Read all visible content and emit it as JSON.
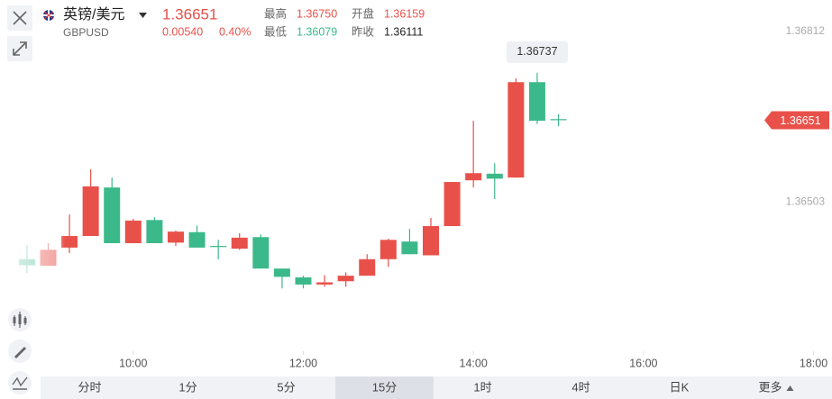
{
  "header": {
    "name": "英镑/美元",
    "symbol": "GBPUSD",
    "last": "1.36651",
    "change": "0.00540",
    "change_pct": "0.40%",
    "high_label": "最高",
    "high": "1.36750",
    "low_label": "最低",
    "low": "1.36079",
    "open_label": "开盘",
    "open": "1.36159",
    "prev_label": "昨收",
    "prev": "1.36111"
  },
  "tabs": [
    "分时",
    "1分",
    "5分",
    "15分",
    "1时",
    "4时",
    "日K",
    "更多"
  ],
  "selected_tab": "15分",
  "chart_data": {
    "type": "candlestick",
    "x": [
      525,
      540,
      555,
      570,
      585,
      600,
      615,
      630,
      645,
      660,
      675,
      690,
      705,
      720,
      735,
      750,
      765,
      780,
      795,
      810,
      825,
      840,
      855,
      870,
      885,
      900
    ],
    "open": [
      1.36399,
      1.36387,
      1.3642,
      1.36441,
      1.36529,
      1.36428,
      1.3647,
      1.36429,
      1.36448,
      1.36423,
      1.36418,
      1.36439,
      1.36382,
      1.36366,
      1.36353,
      1.36359,
      1.36369,
      1.36399,
      1.36431,
      1.36406,
      1.36459,
      1.36542,
      1.36554,
      1.36547,
      1.3672,
      1.36653
    ],
    "high": [
      1.36425,
      1.36428,
      1.3648,
      1.36562,
      1.36547,
      1.36472,
      1.36475,
      1.36451,
      1.3646,
      1.36434,
      1.36446,
      1.36444,
      1.36382,
      1.36369,
      1.3637,
      1.36375,
      1.36408,
      1.36436,
      1.36454,
      1.36474,
      1.36539,
      1.3665,
      1.36573,
      1.36727,
      1.36737,
      1.36662
    ],
    "low": [
      1.36374,
      1.36387,
      1.3641,
      1.36441,
      1.36428,
      1.36428,
      1.36428,
      1.36423,
      1.3642,
      1.36399,
      1.36416,
      1.36382,
      1.36346,
      1.36346,
      1.36349,
      1.36349,
      1.36369,
      1.36385,
      1.36408,
      1.36406,
      1.36459,
      1.36529,
      1.36508,
      1.36547,
      1.36644,
      1.3664
    ],
    "close": [
      1.36388,
      1.36416,
      1.36441,
      1.36531,
      1.36428,
      1.36469,
      1.36428,
      1.36449,
      1.3642,
      1.36421,
      1.36438,
      1.36382,
      1.36367,
      1.36353,
      1.36357,
      1.36369,
      1.36399,
      1.36434,
      1.36408,
      1.36459,
      1.36539,
      1.36555,
      1.36545,
      1.3672,
      1.3665,
      1.36651
    ],
    "up_color": "#e8514a",
    "down_color": "#3cb98a",
    "xlim": [
      506,
      1093
    ],
    "xticks": [
      {
        "value": 600,
        "label": "10:00"
      },
      {
        "value": 720,
        "label": "12:00"
      },
      {
        "value": 840,
        "label": "14:00"
      },
      {
        "value": 960,
        "label": "16:00"
      },
      {
        "value": 1080,
        "label": "18:00"
      }
    ],
    "ylim": [
      1.36232,
      1.36869
    ],
    "yticks": [
      1.36812,
      1.36503
    ],
    "grid": false
  }
}
